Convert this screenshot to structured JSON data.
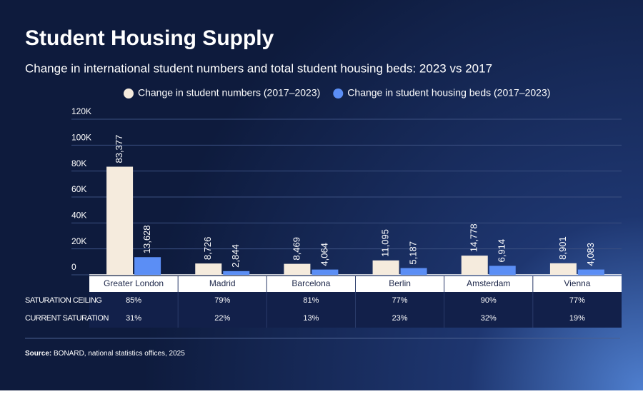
{
  "chart_data": {
    "type": "bar",
    "title": "Student Housing Supply",
    "subtitle": "Change in international student numbers and total student housing beds: 2023 vs 2017",
    "categories": [
      "Greater London",
      "Madrid",
      "Barcelona",
      "Berlin",
      "Amsterdam",
      "Vienna"
    ],
    "series": [
      {
        "name": "Change in student numbers (2017–2023)",
        "color": "#f5ebdd",
        "values": [
          83377,
          8726,
          8469,
          11095,
          14778,
          8901
        ],
        "value_labels": [
          "83,377",
          "8,726",
          "8,469",
          "11,095",
          "14,778",
          "8,901"
        ]
      },
      {
        "name": "Change in student housing beds (2017–2023)",
        "color": "#5b8ef5",
        "values": [
          13628,
          2844,
          4064,
          5187,
          6914,
          4083
        ],
        "value_labels": [
          "13,628",
          "2,844",
          "4,064",
          "5,187",
          "6,914",
          "4,083"
        ]
      }
    ],
    "ylim": [
      0,
      120000
    ],
    "yticks": [
      0,
      {
        "value": 20000,
        "label": "20K"
      },
      {
        "value": 40000,
        "label": "40K"
      },
      {
        "value": 60000,
        "label": "60K"
      },
      {
        "value": 80000,
        "label": "80K"
      },
      {
        "value": 100000,
        "label": "100K"
      },
      {
        "value": 120000,
        "label": "120K"
      }
    ],
    "grid": true,
    "table": {
      "rows": [
        {
          "label": "SATURATION CEILING",
          "cells": [
            "85%",
            "79%",
            "81%",
            "77%",
            "90%",
            "77%"
          ]
        },
        {
          "label": "CURRENT SATURATION",
          "cells": [
            "31%",
            "22%",
            "13%",
            "23%",
            "32%",
            "19%"
          ]
        }
      ]
    },
    "source_label": "Source:",
    "source": "BONARD, national statistics offices, 2025"
  }
}
